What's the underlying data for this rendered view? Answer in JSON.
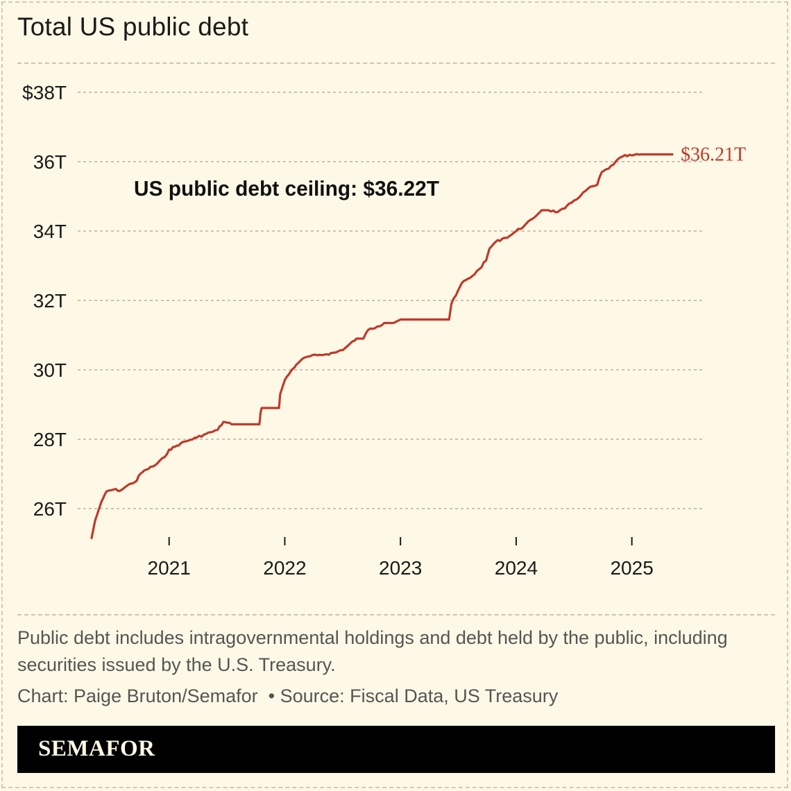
{
  "chart_data": {
    "type": "line",
    "title": "Total US public debt",
    "y_tick_labels": [
      "$38T",
      "36T",
      "34T",
      "32T",
      "30T",
      "28T",
      "26T"
    ],
    "y_ticks": [
      38,
      36,
      34,
      32,
      30,
      28,
      26
    ],
    "ylim": [
      25,
      38
    ],
    "x_tick_labels": [
      "2021",
      "2022",
      "2023",
      "2024",
      "2025"
    ],
    "x_ticks": [
      2021,
      2022,
      2023,
      2024,
      2025
    ],
    "xlim": [
      2020.33,
      2025.5
    ],
    "grid": true,
    "series": [
      {
        "name": "Total US public debt",
        "color": "#c0392b",
        "points": [
          [
            2020.33,
            25.15
          ],
          [
            2020.36,
            25.65
          ],
          [
            2020.4,
            26.05
          ],
          [
            2020.43,
            26.3
          ],
          [
            2020.46,
            26.5
          ],
          [
            2020.52,
            26.55
          ],
          [
            2020.58,
            26.52
          ],
          [
            2020.62,
            26.62
          ],
          [
            2020.67,
            26.72
          ],
          [
            2020.72,
            26.8
          ],
          [
            2020.75,
            27.0
          ],
          [
            2020.8,
            27.12
          ],
          [
            2020.88,
            27.25
          ],
          [
            2020.96,
            27.48
          ],
          [
            2021.0,
            27.7
          ],
          [
            2021.05,
            27.78
          ],
          [
            2021.1,
            27.88
          ],
          [
            2021.18,
            27.98
          ],
          [
            2021.24,
            28.05
          ],
          [
            2021.3,
            28.13
          ],
          [
            2021.36,
            28.2
          ],
          [
            2021.42,
            28.27
          ],
          [
            2021.47,
            28.5
          ],
          [
            2021.54,
            28.43
          ],
          [
            2021.6,
            28.43
          ],
          [
            2021.67,
            28.43
          ],
          [
            2021.78,
            28.43
          ],
          [
            2021.79,
            28.75
          ],
          [
            2021.8,
            28.9
          ],
          [
            2021.95,
            28.9
          ],
          [
            2021.96,
            29.3
          ],
          [
            2022.0,
            29.7
          ],
          [
            2022.05,
            29.95
          ],
          [
            2022.1,
            30.15
          ],
          [
            2022.14,
            30.28
          ],
          [
            2022.2,
            30.38
          ],
          [
            2022.28,
            30.42
          ],
          [
            2022.36,
            30.45
          ],
          [
            2022.44,
            30.5
          ],
          [
            2022.52,
            30.62
          ],
          [
            2022.62,
            30.9
          ],
          [
            2022.68,
            30.9
          ],
          [
            2022.72,
            31.15
          ],
          [
            2022.8,
            31.25
          ],
          [
            2022.86,
            31.35
          ],
          [
            2022.92,
            31.35
          ],
          [
            2023.0,
            31.45
          ],
          [
            2023.2,
            31.45
          ],
          [
            2023.42,
            31.45
          ],
          [
            2023.44,
            31.9
          ],
          [
            2023.48,
            32.15
          ],
          [
            2023.53,
            32.5
          ],
          [
            2023.58,
            32.62
          ],
          [
            2023.62,
            32.7
          ],
          [
            2023.68,
            32.9
          ],
          [
            2023.74,
            33.15
          ],
          [
            2023.77,
            33.5
          ],
          [
            2023.82,
            33.68
          ],
          [
            2023.88,
            33.78
          ],
          [
            2023.94,
            33.85
          ],
          [
            2024.0,
            34.0
          ],
          [
            2024.07,
            34.15
          ],
          [
            2024.14,
            34.35
          ],
          [
            2024.22,
            34.6
          ],
          [
            2024.28,
            34.6
          ],
          [
            2024.36,
            34.55
          ],
          [
            2024.42,
            34.65
          ],
          [
            2024.5,
            34.88
          ],
          [
            2024.56,
            35.03
          ],
          [
            2024.62,
            35.22
          ],
          [
            2024.7,
            35.33
          ],
          [
            2024.74,
            35.7
          ],
          [
            2024.8,
            35.8
          ],
          [
            2024.86,
            36.0
          ],
          [
            2024.92,
            36.15
          ],
          [
            2025.0,
            36.18
          ],
          [
            2025.08,
            36.21
          ],
          [
            2025.2,
            36.21
          ],
          [
            2025.35,
            36.21
          ]
        ],
        "end_label": "$36.21T"
      }
    ],
    "annotations": [
      {
        "text": "US public debt ceiling: $36.22T",
        "value": 36.22
      }
    ]
  },
  "footer": {
    "note": "Public debt includes intragovernmental holdings and debt held by the public, including securities issued by the U.S. Treasury.",
    "credit": "Chart: Paige Bruton/Semafor  • Source: Fiscal Data, US Treasury",
    "brand": "SEMAFOR"
  },
  "colors": {
    "background": "#fdf9e6",
    "line": "#c0392b",
    "grid": "#aaa69a",
    "brand_bar": "#000000"
  }
}
